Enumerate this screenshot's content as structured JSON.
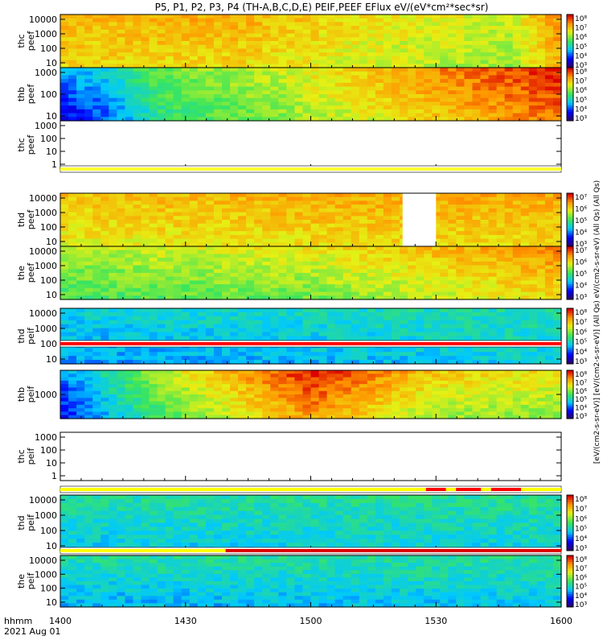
{
  "chart_data": {
    "type": "heatmap",
    "title": "P5, P1, P2, P3, P4 (TH-A,B,C,D,E) PEIF,PEEF EFlux eV/(eV*cm²*sec*sr)",
    "colorbar_label": "[eV/(cm2-s-sr-eV)] [eV/(cm2-s-sr-eV)] (All Qs) eV/(cm2-s-sr-eV) (All Qs) (All Qs)",
    "x_axis": {
      "tick_labels": [
        "1400",
        "1430",
        "1500",
        "1530",
        "1600"
      ],
      "xlim": [
        "1400",
        "1600"
      ],
      "footer_unit": "hhmm",
      "footer_date": "2021 Aug 01"
    },
    "panels": [
      {
        "probe": "thc",
        "species": "peef",
        "y_ticks": [
          "10000",
          "1000",
          "100",
          "10"
        ],
        "log_y": true,
        "profile": [
          [
            0,
            0.72,
            0.78
          ],
          [
            0.35,
            0.72,
            0.8
          ],
          [
            0.7,
            0.64,
            0.68
          ],
          [
            0.9,
            0.6,
            0.66
          ],
          [
            1,
            0.8,
            0.85
          ]
        ],
        "colorbar_ticks": [
          "10⁸",
          "10⁷",
          "10⁶",
          "10⁵",
          "10⁴",
          "10³"
        ]
      },
      {
        "probe": "thb",
        "species": "peef",
        "y_ticks": [
          "1000",
          "100",
          "10"
        ],
        "log_y": true,
        "profile": [
          [
            0,
            0.12,
            0.3
          ],
          [
            0.08,
            0.2,
            0.35
          ],
          [
            0.2,
            0.45,
            0.55
          ],
          [
            0.45,
            0.58,
            0.66
          ],
          [
            0.7,
            0.72,
            0.82
          ],
          [
            1,
            0.88,
            0.98
          ]
        ],
        "colorbar_ticks": [
          "10⁸",
          "10⁷",
          "10⁶",
          "10⁵",
          "10⁴",
          "10³"
        ]
      },
      {
        "probe": "thc",
        "species": "peef",
        "y_ticks": [
          "1000",
          "100",
          "10",
          "1"
        ],
        "log_y": true,
        "empty": true,
        "colorbar_ticks": []
      },
      {
        "probe": "thd",
        "species": "peef",
        "y_ticks": [
          "10000",
          "1000",
          "100",
          "10"
        ],
        "log_y": true,
        "profile": [
          [
            0,
            0.68,
            0.76
          ],
          [
            0.6,
            0.72,
            0.8
          ],
          [
            1,
            0.72,
            0.8
          ]
        ],
        "gaps": [
          [
            1522,
            1530
          ]
        ],
        "colorbar_ticks": [
          "10⁷",
          "10⁶",
          "10⁵",
          "10⁴",
          "10³"
        ]
      },
      {
        "probe": "the",
        "species": "peef",
        "y_ticks": [
          "10000",
          "1000",
          "100",
          "10"
        ],
        "log_y": true,
        "profile": [
          [
            0,
            0.5,
            0.62
          ],
          [
            0.5,
            0.55,
            0.7
          ],
          [
            1,
            0.72,
            0.85
          ]
        ],
        "colorbar_ticks": [
          "10⁷",
          "10⁶",
          "10⁵",
          "10⁴",
          "10³"
        ]
      },
      {
        "probe": "thd",
        "species": "peif",
        "y_ticks": [
          "10000",
          "1000",
          "100",
          "10"
        ],
        "log_y": true,
        "profile": [
          [
            0,
            0.28,
            0.36
          ],
          [
            1,
            0.36,
            0.42
          ]
        ],
        "colorbar_ticks": [
          "10⁸",
          "10⁷",
          "10⁶",
          "10⁵",
          "10⁴",
          "10³"
        ]
      },
      {
        "probe": "thb",
        "species": "peif",
        "y_ticks": [
          "1000"
        ],
        "log_y": true,
        "profile": [
          [
            0,
            0.14,
            0.26
          ],
          [
            0.2,
            0.5,
            0.62
          ],
          [
            0.5,
            0.82,
            0.98
          ],
          [
            0.75,
            0.6,
            0.75
          ],
          [
            1,
            0.58,
            0.7
          ]
        ],
        "colorbar_ticks": [
          "10⁸",
          "10⁷",
          "10⁶",
          "10⁵",
          "10⁴",
          "10³"
        ]
      },
      {
        "probe": "thc",
        "species": "peif",
        "y_ticks": [
          "1000",
          "100",
          "10",
          "1"
        ],
        "log_y": true,
        "empty": true,
        "colorbar_ticks": []
      },
      {
        "probe": "thd",
        "species": "peif",
        "y_ticks": [
          "10000",
          "1000",
          "100",
          "10"
        ],
        "log_y": true,
        "profile": [
          [
            0,
            0.34,
            0.42
          ],
          [
            1,
            0.36,
            0.44
          ]
        ],
        "colorbar_ticks": [
          "10⁸",
          "10⁷",
          "10⁶",
          "10⁵",
          "10⁴",
          "10³"
        ]
      },
      {
        "probe": "the",
        "species": "peif",
        "y_ticks": [
          "10000",
          "1000",
          "100",
          "10"
        ],
        "log_y": true,
        "profile": [
          [
            0,
            0.3,
            0.42
          ],
          [
            1,
            0.34,
            0.44
          ]
        ],
        "colorbar_ticks": [
          "10⁸",
          "10⁷",
          "10⁶",
          "10⁵",
          "10⁴",
          "10³"
        ]
      }
    ]
  }
}
